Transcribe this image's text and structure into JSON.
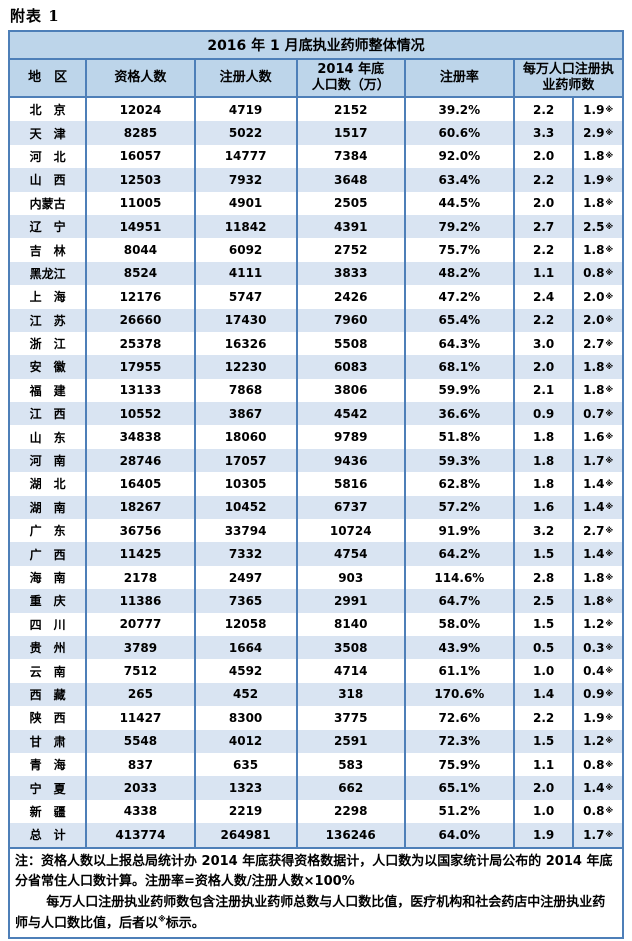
{
  "page": {
    "caption": "附表 1"
  },
  "colors": {
    "border": "#4E7FB8",
    "header_bg": "#BDD5EA",
    "row_alt_bg": "#D9E4F2",
    "text": "#000000"
  },
  "table": {
    "title": "2016 年 1 月底执业药师整体情况",
    "headers": {
      "region": "地　区",
      "qualified": "资格人数",
      "registered": "注册人数",
      "population_line1": "2014 年底",
      "population_line2": "人口数（万）",
      "rate": "注册率",
      "per10k": "每万人口注册执业药师数"
    },
    "footnote_mark": "※",
    "rows": [
      {
        "region": "北　京",
        "qualified": "12024",
        "registered": "4719",
        "population": "2152",
        "rate": "39.2%",
        "per_total": "2.2",
        "per_retail": "1.9"
      },
      {
        "region": "天　津",
        "qualified": "8285",
        "registered": "5022",
        "population": "1517",
        "rate": "60.6%",
        "per_total": "3.3",
        "per_retail": "2.9"
      },
      {
        "region": "河　北",
        "qualified": "16057",
        "registered": "14777",
        "population": "7384",
        "rate": "92.0%",
        "per_total": "2.0",
        "per_retail": "1.8"
      },
      {
        "region": "山　西",
        "qualified": "12503",
        "registered": "7932",
        "population": "3648",
        "rate": "63.4%",
        "per_total": "2.2",
        "per_retail": "1.9"
      },
      {
        "region": "内蒙古",
        "qualified": "11005",
        "registered": "4901",
        "population": "2505",
        "rate": "44.5%",
        "per_total": "2.0",
        "per_retail": "1.8"
      },
      {
        "region": "辽　宁",
        "qualified": "14951",
        "registered": "11842",
        "population": "4391",
        "rate": "79.2%",
        "per_total": "2.7",
        "per_retail": "2.5"
      },
      {
        "region": "吉　林",
        "qualified": "8044",
        "registered": "6092",
        "population": "2752",
        "rate": "75.7%",
        "per_total": "2.2",
        "per_retail": "1.8"
      },
      {
        "region": "黑龙江",
        "qualified": "8524",
        "registered": "4111",
        "population": "3833",
        "rate": "48.2%",
        "per_total": "1.1",
        "per_retail": "0.8"
      },
      {
        "region": "上　海",
        "qualified": "12176",
        "registered": "5747",
        "population": "2426",
        "rate": "47.2%",
        "per_total": "2.4",
        "per_retail": "2.0"
      },
      {
        "region": "江　苏",
        "qualified": "26660",
        "registered": "17430",
        "population": "7960",
        "rate": "65.4%",
        "per_total": "2.2",
        "per_retail": "2.0"
      },
      {
        "region": "浙　江",
        "qualified": "25378",
        "registered": "16326",
        "population": "5508",
        "rate": "64.3%",
        "per_total": "3.0",
        "per_retail": "2.7"
      },
      {
        "region": "安　徽",
        "qualified": "17955",
        "registered": "12230",
        "population": "6083",
        "rate": "68.1%",
        "per_total": "2.0",
        "per_retail": "1.8"
      },
      {
        "region": "福　建",
        "qualified": "13133",
        "registered": "7868",
        "population": "3806",
        "rate": "59.9%",
        "per_total": "2.1",
        "per_retail": "1.8"
      },
      {
        "region": "江　西",
        "qualified": "10552",
        "registered": "3867",
        "population": "4542",
        "rate": "36.6%",
        "per_total": "0.9",
        "per_retail": "0.7"
      },
      {
        "region": "山　东",
        "qualified": "34838",
        "registered": "18060",
        "population": "9789",
        "rate": "51.8%",
        "per_total": "1.8",
        "per_retail": "1.6"
      },
      {
        "region": "河　南",
        "qualified": "28746",
        "registered": "17057",
        "population": "9436",
        "rate": "59.3%",
        "per_total": "1.8",
        "per_retail": "1.7"
      },
      {
        "region": "湖　北",
        "qualified": "16405",
        "registered": "10305",
        "population": "5816",
        "rate": "62.8%",
        "per_total": "1.8",
        "per_retail": "1.4"
      },
      {
        "region": "湖　南",
        "qualified": "18267",
        "registered": "10452",
        "population": "6737",
        "rate": "57.2%",
        "per_total": "1.6",
        "per_retail": "1.4"
      },
      {
        "region": "广　东",
        "qualified": "36756",
        "registered": "33794",
        "population": "10724",
        "rate": "91.9%",
        "per_total": "3.2",
        "per_retail": "2.7"
      },
      {
        "region": "广　西",
        "qualified": "11425",
        "registered": "7332",
        "population": "4754",
        "rate": "64.2%",
        "per_total": "1.5",
        "per_retail": "1.4"
      },
      {
        "region": "海　南",
        "qualified": "2178",
        "registered": "2497",
        "population": "903",
        "rate": "114.6%",
        "per_total": "2.8",
        "per_retail": "1.8"
      },
      {
        "region": "重　庆",
        "qualified": "11386",
        "registered": "7365",
        "population": "2991",
        "rate": "64.7%",
        "per_total": "2.5",
        "per_retail": "1.8"
      },
      {
        "region": "四　川",
        "qualified": "20777",
        "registered": "12058",
        "population": "8140",
        "rate": "58.0%",
        "per_total": "1.5",
        "per_retail": "1.2"
      },
      {
        "region": "贵　州",
        "qualified": "3789",
        "registered": "1664",
        "population": "3508",
        "rate": "43.9%",
        "per_total": "0.5",
        "per_retail": "0.3"
      },
      {
        "region": "云　南",
        "qualified": "7512",
        "registered": "4592",
        "population": "4714",
        "rate": "61.1%",
        "per_total": "1.0",
        "per_retail": "0.4"
      },
      {
        "region": "西　藏",
        "qualified": "265",
        "registered": "452",
        "population": "318",
        "rate": "170.6%",
        "per_total": "1.4",
        "per_retail": "0.9"
      },
      {
        "region": "陕　西",
        "qualified": "11427",
        "registered": "8300",
        "population": "3775",
        "rate": "72.6%",
        "per_total": "2.2",
        "per_retail": "1.9"
      },
      {
        "region": "甘　肃",
        "qualified": "5548",
        "registered": "4012",
        "population": "2591",
        "rate": "72.3%",
        "per_total": "1.5",
        "per_retail": "1.2"
      },
      {
        "region": "青　海",
        "qualified": "837",
        "registered": "635",
        "population": "583",
        "rate": "75.9%",
        "per_total": "1.1",
        "per_retail": "0.8"
      },
      {
        "region": "宁　夏",
        "qualified": "2033",
        "registered": "1323",
        "population": "662",
        "rate": "65.1%",
        "per_total": "2.0",
        "per_retail": "1.4"
      },
      {
        "region": "新　疆",
        "qualified": "4338",
        "registered": "2219",
        "population": "2298",
        "rate": "51.2%",
        "per_total": "1.0",
        "per_retail": "0.8"
      },
      {
        "region": "总　计",
        "qualified": "413774",
        "registered": "264981",
        "population": "136246",
        "rate": "64.0%",
        "per_total": "1.9",
        "per_retail": "1.7"
      }
    ],
    "notes": {
      "p1": "注：资格人数以上报总局统计办 2014 年底获得资格数据计，人口数为以国家统计局公布的 2014 年底分省常住人口数计算。注册率=资格人数/注册人数×100%",
      "p2_pre": "每万人口注册执业药师数包含注册执业药师总数与人口数比值，医疗机构和社会药店中注册执业药师与人口数比值，后者以",
      "p2_mark": "※",
      "p2_post": "标示。"
    }
  }
}
